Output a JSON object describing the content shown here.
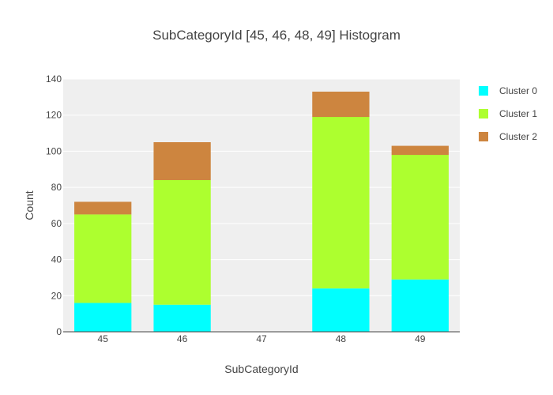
{
  "chart_data": {
    "type": "bar",
    "stacked": true,
    "title": "SubCategoryId [45, 46, 48, 49] Histogram",
    "xlabel": "SubCategoryId",
    "ylabel": "Count",
    "categories": [
      "45",
      "46",
      "47",
      "48",
      "49"
    ],
    "ylim": [
      0,
      140
    ],
    "yticks": [
      0,
      20,
      40,
      60,
      80,
      100,
      120,
      140
    ],
    "grid": true,
    "legend_position": "right",
    "plot_background": "#efefef",
    "series": [
      {
        "name": "Cluster 0",
        "color": "#00ffff",
        "values": [
          16,
          15,
          0,
          24,
          29
        ]
      },
      {
        "name": "Cluster 1",
        "color": "#adff2f",
        "values": [
          49,
          69,
          0,
          95,
          69
        ]
      },
      {
        "name": "Cluster 2",
        "color": "#cd853f",
        "values": [
          7,
          21,
          0,
          14,
          5
        ]
      }
    ]
  }
}
